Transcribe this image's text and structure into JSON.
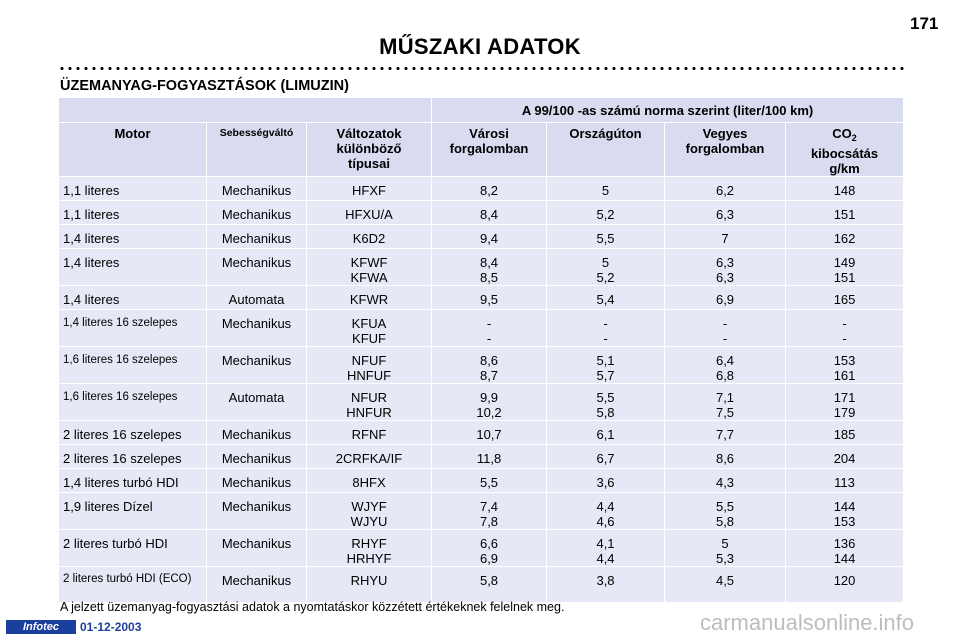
{
  "page": {
    "number": "171",
    "title": "MŰSZAKI ADATOK",
    "section_heading": "ÜZEMANYAG-FOGYASZTÁSOK (LIMUZIN)",
    "footnote": "A jelzett üzemanyag-fogyasztási adatok a nyomtatáskor közzétett értékeknek felelnek meg.",
    "logo_text": "Infotec",
    "date": "01-12-2003",
    "watermark": "carmanualsonline.info"
  },
  "table": {
    "norm_header": "A 99/100 -as számú norma szerint (liter/100 km)",
    "headers": {
      "motor": "Motor",
      "gearbox": "Sebességváltó",
      "variants": [
        "Változatok",
        "különböző",
        "típusai"
      ],
      "urban": [
        "Városi",
        "forgalomban"
      ],
      "extra_urban": "Országúton",
      "combined": [
        "Vegyes",
        "forgalomban"
      ],
      "co2_prefix": "CO",
      "co2_sub": "2",
      "co2_rest": [
        "kibocsátás",
        "g/km"
      ]
    },
    "rows": [
      {
        "motor": "1,1 literes",
        "gear": "Mechanikus",
        "variant": [
          "HFXF"
        ],
        "urban": [
          "8,2"
        ],
        "extra": [
          "5"
        ],
        "combined": [
          "6,2"
        ],
        "co2": [
          "148"
        ]
      },
      {
        "motor": "1,1 literes",
        "gear": "Mechanikus",
        "variant": [
          "HFXU/A"
        ],
        "urban": [
          "8,4"
        ],
        "extra": [
          "5,2"
        ],
        "combined": [
          "6,3"
        ],
        "co2": [
          "151"
        ]
      },
      {
        "motor": "1,4 literes",
        "gear": "Mechanikus",
        "variant": [
          "K6D2"
        ],
        "urban": [
          "9,4"
        ],
        "extra": [
          "5,5"
        ],
        "combined": [
          "7"
        ],
        "co2": [
          "162"
        ]
      },
      {
        "motor": "1,4 literes",
        "gear": "Mechanikus",
        "variant": [
          "KFWF",
          "KFWA"
        ],
        "urban": [
          "8,4",
          "8,5"
        ],
        "extra": [
          "5",
          "5,2"
        ],
        "combined": [
          "6,3",
          "6,3"
        ],
        "co2": [
          "149",
          "151"
        ]
      },
      {
        "motor": "1,4 literes",
        "gear": "Automata",
        "variant": [
          "KFWR"
        ],
        "urban": [
          "9,5"
        ],
        "extra": [
          "5,4"
        ],
        "combined": [
          "6,9"
        ],
        "co2": [
          "165"
        ]
      },
      {
        "motor": "1,4 literes 16 szelepes",
        "gear": "Mechanikus",
        "variant": [
          "KFUA",
          "KFUF"
        ],
        "urban": [
          "-",
          "-"
        ],
        "extra": [
          "-",
          "-"
        ],
        "combined": [
          "-",
          "-"
        ],
        "co2": [
          "-",
          "-"
        ]
      },
      {
        "motor": "1,6 literes 16 szelepes",
        "gear": "Mechanikus",
        "variant": [
          "NFUF",
          "HNFUF"
        ],
        "urban": [
          "8,6",
          "8,7"
        ],
        "extra": [
          "5,1",
          "5,7"
        ],
        "combined": [
          "6,4",
          "6,8"
        ],
        "co2": [
          "153",
          "161"
        ]
      },
      {
        "motor": "1,6 literes 16 szelepes",
        "gear": "Automata",
        "variant": [
          "NFUR",
          "HNFUR"
        ],
        "urban": [
          "9,9",
          "10,2"
        ],
        "extra": [
          "5,5",
          "5,8"
        ],
        "combined": [
          "7,1",
          "7,5"
        ],
        "co2": [
          "171",
          "179"
        ]
      },
      {
        "motor": "2 literes 16 szelepes",
        "gear": "Mechanikus",
        "variant": [
          "RFNF"
        ],
        "urban": [
          "10,7"
        ],
        "extra": [
          "6,1"
        ],
        "combined": [
          "7,7"
        ],
        "co2": [
          "185"
        ]
      },
      {
        "motor": "2 literes 16 szelepes",
        "gear": "Mechanikus",
        "variant": [
          "2CRFKA/IF"
        ],
        "urban": [
          "11,8"
        ],
        "extra": [
          "6,7"
        ],
        "combined": [
          "8,6"
        ],
        "co2": [
          "204"
        ]
      },
      {
        "motor": "1,4 literes turbó HDI",
        "gear": "Mechanikus",
        "variant": [
          "8HFX"
        ],
        "urban": [
          "5,5"
        ],
        "extra": [
          "3,6"
        ],
        "combined": [
          "4,3"
        ],
        "co2": [
          "113"
        ]
      },
      {
        "motor": "1,9 literes Dízel",
        "gear": "Mechanikus",
        "variant": [
          "WJYF",
          "WJYU"
        ],
        "urban": [
          "7,4",
          "7,8"
        ],
        "extra": [
          "4,4",
          "4,6"
        ],
        "combined": [
          "5,5",
          "5,8"
        ],
        "co2": [
          "144",
          "153"
        ]
      },
      {
        "motor": "2 literes turbó HDI",
        "gear": "Mechanikus",
        "variant": [
          "RHYF",
          "HRHYF"
        ],
        "urban": [
          "6,6",
          "6,9"
        ],
        "extra": [
          "4,1",
          "4,4"
        ],
        "combined": [
          "5",
          "5,3"
        ],
        "co2": [
          "136",
          "144"
        ]
      },
      {
        "motor": "2 literes turbó HDI (ECO)",
        "gear": "Mechanikus",
        "variant": [
          "RHYU"
        ],
        "urban": [
          "5,8"
        ],
        "extra": [
          "3,8"
        ],
        "combined": [
          "4,5"
        ],
        "co2": [
          "120"
        ]
      }
    ]
  }
}
